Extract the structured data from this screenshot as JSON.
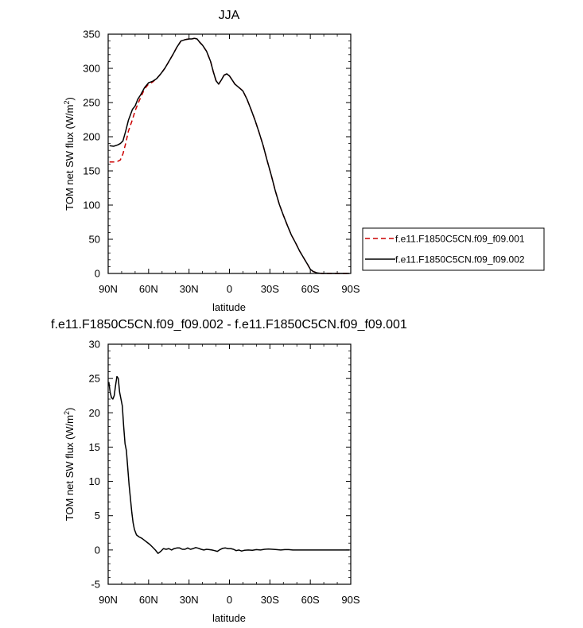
{
  "chart_data": [
    {
      "type": "line",
      "title": "JJA",
      "xlabel": "latitude",
      "ylabel": "TOM net SW flux (W/m",
      "ylabel_sup": "2",
      "ylabel_close": ")",
      "xlim": [
        90,
        -90
      ],
      "ylim": [
        0,
        350
      ],
      "xticks": [
        90,
        60,
        30,
        0,
        -30,
        -60,
        -90
      ],
      "xtick_labels": [
        "90N",
        "60N",
        "30N",
        "0",
        "30S",
        "60S",
        "90S"
      ],
      "yticks": [
        0,
        50,
        100,
        150,
        200,
        250,
        300,
        350
      ],
      "ytick_labels": [
        "0",
        "50",
        "100",
        "150",
        "200",
        "250",
        "300",
        "350"
      ],
      "legend": "right",
      "series": [
        {
          "name": "f.e11.F1850C5CN.f09_f09.001",
          "color": "#cc0000",
          "dash": "dashed",
          "x": [
            89,
            86,
            83,
            81,
            79,
            77,
            75,
            72,
            70,
            68,
            66,
            63,
            60,
            57,
            54,
            51,
            48,
            45,
            42,
            39,
            36,
            33,
            30,
            28,
            26,
            24,
            22,
            20,
            17,
            14,
            12,
            10,
            8,
            6,
            4,
            2,
            0,
            -2,
            -4,
            -7,
            -10,
            -13,
            -16,
            -19,
            -22,
            -25,
            -28,
            -31,
            -34,
            -37,
            -40,
            -43,
            -46,
            -49,
            -52,
            -55,
            -58,
            -60,
            -62,
            -64,
            -65,
            -67,
            -69,
            -71,
            -74,
            -77,
            -80,
            -83,
            -86,
            -89
          ],
          "y": [
            163,
            163,
            164,
            166,
            175,
            190,
            208,
            225,
            238,
            248,
            257,
            270,
            277,
            280,
            285,
            292,
            300,
            310,
            320,
            331,
            340,
            342,
            343,
            343,
            344,
            343,
            338,
            334,
            325,
            310,
            295,
            282,
            277,
            283,
            290,
            292,
            289,
            283,
            277,
            272,
            267,
            255,
            240,
            224,
            206,
            187,
            165,
            144,
            121,
            101,
            85,
            70,
            56,
            45,
            33,
            23,
            13,
            6,
            3,
            1.5,
            0.8,
            0.3,
            0,
            0,
            0,
            0,
            0,
            0,
            0,
            0
          ]
        },
        {
          "name": "f.e11.F1850C5CN.f09_f09.002",
          "color": "#000000",
          "dash": "solid",
          "x": [
            89,
            86,
            83,
            81,
            79,
            77,
            75,
            72,
            70,
            68,
            66,
            63,
            60,
            57,
            54,
            51,
            48,
            45,
            42,
            39,
            36,
            33,
            30,
            28,
            26,
            24,
            22,
            20,
            17,
            14,
            12,
            10,
            8,
            6,
            4,
            2,
            0,
            -2,
            -4,
            -7,
            -10,
            -13,
            -16,
            -19,
            -22,
            -25,
            -28,
            -31,
            -34,
            -37,
            -40,
            -43,
            -46,
            -49,
            -52,
            -55,
            -58,
            -60,
            -62,
            -64,
            -65,
            -67,
            -69,
            -71,
            -74,
            -77,
            -80,
            -83,
            -86,
            -89
          ],
          "y": [
            187,
            186,
            188,
            190,
            194,
            208,
            224,
            240,
            245,
            255,
            261,
            272,
            279,
            281,
            285,
            292,
            300,
            310,
            320,
            331,
            340,
            342,
            343,
            343,
            344,
            343,
            338,
            334,
            325,
            310,
            295,
            282,
            277,
            283,
            290,
            292,
            289,
            283,
            277,
            272,
            267,
            255,
            240,
            224,
            206,
            187,
            165,
            144,
            121,
            101,
            85,
            70,
            56,
            45,
            33,
            23,
            13,
            6,
            3,
            1.5,
            0.8,
            0.3,
            0,
            0,
            0,
            0,
            0,
            0,
            0,
            0
          ]
        }
      ]
    },
    {
      "type": "line",
      "title": "f.e11.F1850C5CN.f09_f09.002 - f.e11.F1850C5CN.f09_f09.001",
      "xlabel": "latitude",
      "ylabel": "TOM net SW flux (W/m",
      "ylabel_sup": "2",
      "ylabel_close": ")",
      "xlim": [
        90,
        -90
      ],
      "ylim": [
        -5,
        30
      ],
      "xticks": [
        90,
        60,
        30,
        0,
        -30,
        -60,
        -90
      ],
      "xtick_labels": [
        "90N",
        "60N",
        "30N",
        "0",
        "30S",
        "60S",
        "90S"
      ],
      "yticks": [
        -5,
        0,
        5,
        10,
        15,
        20,
        25,
        30
      ],
      "ytick_labels": [
        "-5",
        "0",
        "5",
        "10",
        "15",
        "20",
        "25",
        "30"
      ],
      "series": [
        {
          "color": "#000000",
          "dash": "solid",
          "x": [
            89.5,
            88.5,
            87.5,
            86.5,
            85.5,
            84.5,
            83.5,
            82.5,
            81.5,
            80.5,
            79.5,
            78.5,
            77.5,
            76.5,
            75.5,
            74.5,
            73.5,
            72.5,
            71.5,
            70.5,
            69,
            67,
            65,
            63,
            61,
            59,
            57,
            55,
            53,
            51,
            49,
            47,
            45,
            43,
            41,
            39,
            37,
            35,
            33,
            31,
            29,
            27,
            25,
            23,
            21,
            19,
            17,
            15,
            13,
            11,
            9,
            7,
            5,
            3,
            1,
            -1,
            -3,
            -5,
            -7,
            -9,
            -11,
            -14,
            -17,
            -20,
            -23,
            -26,
            -29,
            -32,
            -35,
            -38,
            -41,
            -44,
            -47,
            -50,
            -53,
            -56,
            -59,
            -62,
            -65,
            -68,
            -71,
            -74,
            -77,
            -80,
            -83,
            -86,
            -89
          ],
          "y": [
            24.5,
            23,
            22.2,
            22,
            22.5,
            24,
            25.3,
            25,
            23,
            22,
            21,
            18,
            15.5,
            14.5,
            12,
            9.5,
            7.5,
            5.5,
            4,
            3,
            2.2,
            1.9,
            1.7,
            1.4,
            1.1,
            0.8,
            0.4,
            0,
            -0.5,
            -0.2,
            0.2,
            0.1,
            0.2,
            0,
            0.2,
            0.3,
            0.3,
            0.1,
            0.1,
            0.3,
            0.1,
            0.2,
            0.35,
            0.25,
            0.1,
            0,
            0.1,
            0.05,
            0,
            -0.1,
            -0.2,
            0.05,
            0.25,
            0.3,
            0.2,
            0.2,
            0.1,
            -0.1,
            0,
            -0.15,
            -0.05,
            0,
            -0.05,
            0.05,
            0,
            0.1,
            0.15,
            0.1,
            0.05,
            0,
            0.05,
            0.05,
            0,
            0,
            0,
            0,
            0,
            0,
            0,
            0,
            0,
            0,
            0,
            0,
            0,
            0,
            0
          ]
        }
      ]
    }
  ]
}
